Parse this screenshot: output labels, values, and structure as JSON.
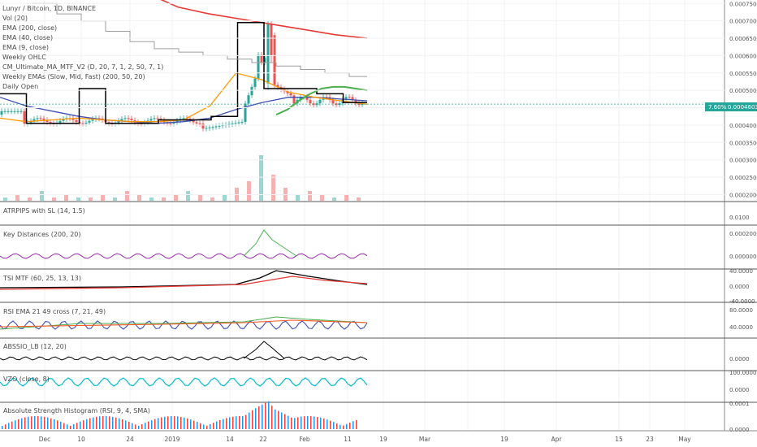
{
  "header": {
    "title": "Lunyr / Bitcoin, 1D, BINANCE"
  },
  "main_legend": [
    "Vol (20)",
    "EMA (200, close)",
    "EMA (40, close)",
    "EMA (9, close)",
    "Weekly OHLC",
    "CM_Ultimate_MA_MTF_V2 (D, 20, 7, 1, 2, 50, 7, 1)",
    "Weekly EMAs (Slow, Mid, Fast) (200, 50, 20)",
    "Daily Open"
  ],
  "price_tag": {
    "pct": "7.60%",
    "value": "0.0004603"
  },
  "colors": {
    "up": "#26a69a",
    "down": "#ef5350",
    "ema200": "#e53935",
    "ema40": "#3f51b5",
    "ema9": "#ff9800",
    "weekly_black": "#000000",
    "weekly_green": "#4caf50",
    "tsi": "#000000",
    "rsi": "#3f51b5",
    "vzo": "#00bcd4"
  },
  "chart_data": [
    {
      "type": "line",
      "title": "Lunyr / Bitcoin, 1D, BINANCE",
      "y_ticks": [
        "0.0007500",
        "0.0007000",
        "0.0006500",
        "0.0006000",
        "0.0005500",
        "0.0005000",
        "0.0004500",
        "0.0004000",
        "0.0003500",
        "0.0003000",
        "0.0002500",
        "0.0002000"
      ],
      "ylim": [
        0.00018,
        0.00076
      ],
      "x_labels": [
        "Dec",
        "10",
        "24",
        "2019",
        "14",
        "22",
        "Feb",
        "11",
        "19",
        "Mar",
        "19",
        "Apr",
        "15",
        "23",
        "May"
      ],
      "series": [
        {
          "name": "EMA (200, close)",
          "values": [
            0.00078,
            0.00074,
            0.00072,
            0.000705,
            0.00069,
            0.000675,
            0.00066,
            0.00065
          ]
        },
        {
          "name": "EMA (40, close)",
          "values": [
            0.00048,
            0.000455,
            0.00044,
            0.000425,
            0.000415,
            0.00041,
            0.000405,
            0.00041,
            0.00042,
            0.000445,
            0.000465,
            0.00048,
            0.00048,
            0.000475,
            0.00047
          ]
        },
        {
          "name": "EMA (9, close)",
          "values": [
            0.00042,
            0.00041,
            0.000415,
            0.00042,
            0.000415,
            0.00041,
            0.00041,
            0.000415,
            0.000455,
            0.00055,
            0.00053,
            0.000495,
            0.00048,
            0.00047,
            0.00046
          ]
        },
        {
          "name": "Weekly OHLC",
          "values": [
            0.00049,
            0.000405,
            0.000405,
            0.000505,
            0.000405,
            0.000405,
            0.000415,
            0.000415,
            0.000425,
            0.000695,
            0.000505,
            0.000505,
            0.00049,
            0.000465
          ]
        }
      ],
      "last_price": 0.0004603
    },
    {
      "type": "bar",
      "title": "Vol (20)",
      "values": [
        1,
        2,
        1,
        3,
        1,
        2,
        1,
        1,
        2,
        1,
        3,
        2,
        1,
        1,
        2,
        3,
        2,
        1,
        2,
        4,
        6,
        14,
        8,
        4,
        2,
        3,
        2,
        1,
        2,
        1
      ]
    },
    {
      "type": "line",
      "title": "ATRPIPS with SL (14, 1.5)",
      "y_ticks": [
        "0.0100"
      ]
    },
    {
      "type": "line",
      "title": "Key Distances (200, 20)",
      "y_ticks": [
        "0.00020000",
        "0.00000000"
      ]
    },
    {
      "type": "line",
      "title": "TSI MTF (60, 25, 13, 13)",
      "y_ticks": [
        "40.0000",
        "0.0000",
        "-40.0000"
      ]
    },
    {
      "type": "line",
      "title": "RSI EMA 21 49 cross (7, 21, 49)",
      "y_ticks": [
        "80.0000",
        "40.0000"
      ]
    },
    {
      "type": "line",
      "title": "ABSSIO_LB (12, 20)",
      "y_ticks": [
        "0.0000"
      ]
    },
    {
      "type": "line",
      "title": "VZO (close, 8)",
      "y_ticks": [
        "100.0000",
        "0.0000"
      ]
    },
    {
      "type": "bar",
      "title": "Absolute Strength Histogram (RSI, 9, 4, SMA)",
      "y_ticks": [
        "0.0001",
        "0.0000"
      ]
    }
  ]
}
